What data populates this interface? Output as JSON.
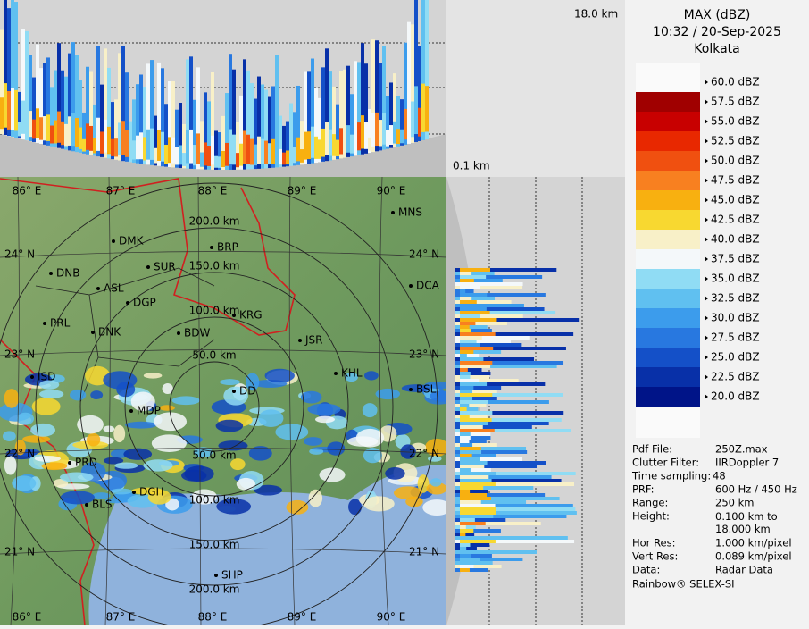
{
  "header": {
    "title": "MAX (dBZ)",
    "time": "10:32 / 20-Sep-2025",
    "site": "Kolkata"
  },
  "top_panel": {
    "top_label": "18.0 km",
    "bottom_label": "0.1 km"
  },
  "legend": {
    "labels": [
      "60.0 dBZ",
      "57.5 dBZ",
      "55.0 dBZ",
      "52.5 dBZ",
      "50.0 dBZ",
      "47.5 dBZ",
      "45.0 dBZ",
      "42.5 dBZ",
      "40.0 dBZ",
      "37.5 dBZ",
      "35.0 dBZ",
      "32.5 dBZ",
      "30.0 dBZ",
      "27.5 dBZ",
      "25.0 dBZ",
      "22.5 dBZ",
      "20.0 dBZ"
    ],
    "band_colors": [
      "#a00000",
      "#c80000",
      "#e82800",
      "#f05010",
      "#f88020",
      "#f8b010",
      "#f8d830",
      "#f8f0c8",
      "#f4f8fa",
      "#90dcf4",
      "#60c0f0",
      "#3c9cec",
      "#2878e0",
      "#1450c8",
      "#0830a8",
      "#001488"
    ]
  },
  "info": [
    [
      "Pdf File:",
      "250Z.max"
    ],
    [
      "Clutter Filter:",
      "IIRDoppler 7"
    ],
    [
      "Time sampling:",
      "48"
    ],
    [
      "PRF:",
      "600 Hz / 450 Hz"
    ],
    [
      "Range:",
      "250 km"
    ],
    [
      "Height:",
      "0.100 km to 18.000 km"
    ],
    [
      "Hor Res:",
      "1.000 km/pixel"
    ],
    [
      "Vert Res:",
      "0.089 km/pixel"
    ],
    [
      "Data:",
      "Radar Data"
    ]
  ],
  "footer": "Rainbow® SELEX-SI",
  "map": {
    "longitudes": [
      "86° E",
      "87° E",
      "88° E",
      "89° E",
      "90° E"
    ],
    "latitudes": [
      "24° N",
      "23° N",
      "22° N",
      "21° N"
    ],
    "rings": [
      "50.0 km",
      "100.0 km",
      "150.0 km",
      "200.0 km"
    ],
    "cities": [
      "MNS",
      "BRP",
      "DMK",
      "SUR",
      "DNB",
      "ASL",
      "DGP",
      "DCA",
      "KRG",
      "PRL",
      "BNK",
      "BDW",
      "JSR",
      "ISD",
      "KHL",
      "BSL",
      "MDP",
      "DD",
      "PRD",
      "DGH",
      "BLS",
      "SHP"
    ]
  }
}
